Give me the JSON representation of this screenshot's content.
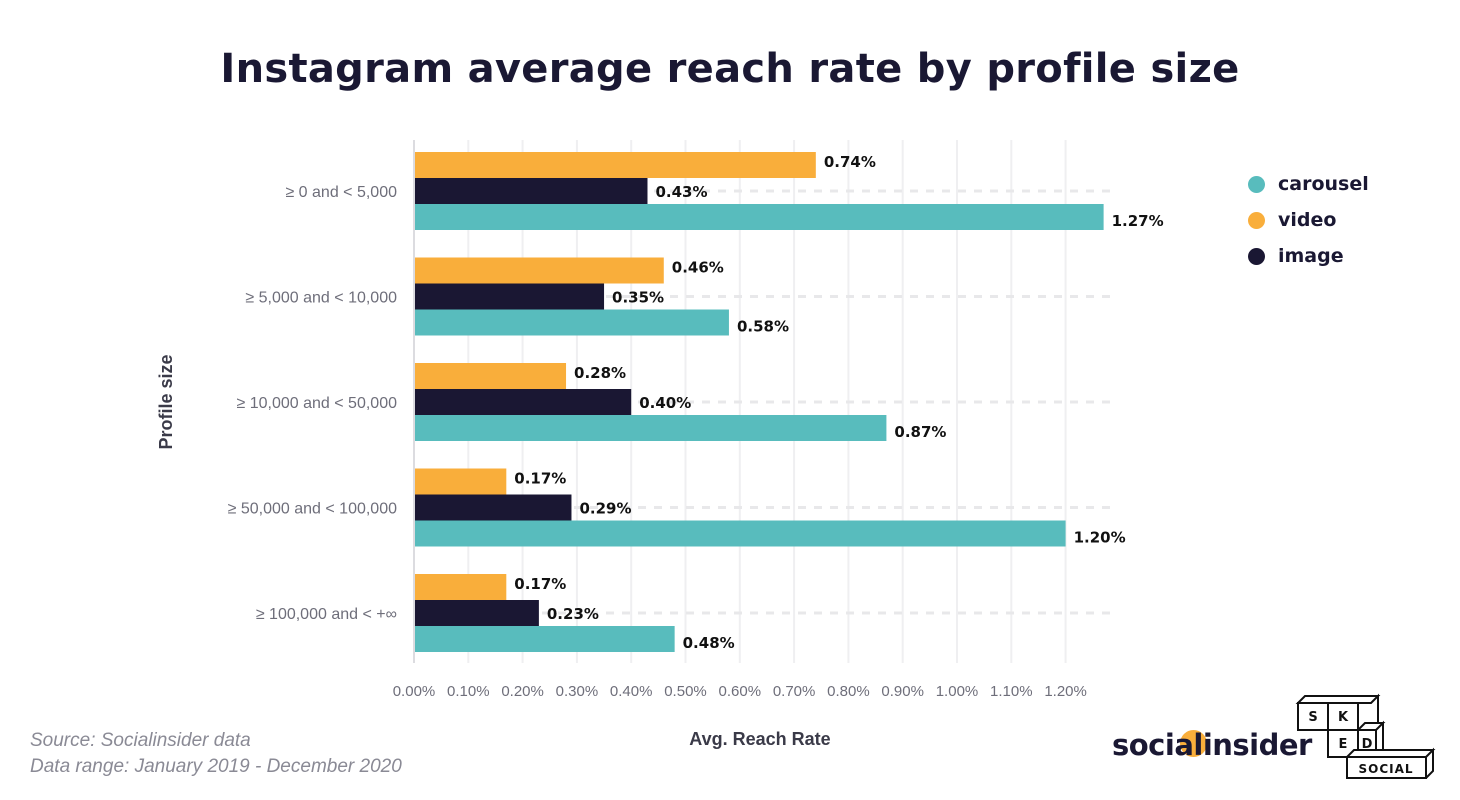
{
  "chart_data": {
    "type": "bar",
    "orientation": "horizontal",
    "title": "Instagram average reach rate by profile size",
    "xlabel": "Avg. Reach Rate",
    "ylabel": "Profile size",
    "categories": [
      "≥ 0 and < 5,000",
      "≥ 5,000 and < 10,000",
      "≥ 10,000 and < 50,000",
      "≥ 50,000 and < 100,000",
      "≥ 100,000 and < +∞"
    ],
    "series": [
      {
        "name": "video",
        "color": "#f9ae3b",
        "values": [
          0.74,
          0.46,
          0.28,
          0.17,
          0.17
        ],
        "labels": [
          "0.74%",
          "0.46%",
          "0.28%",
          "0.17%",
          "0.17%"
        ]
      },
      {
        "name": "image",
        "color": "#1a1733",
        "values": [
          0.43,
          0.35,
          0.4,
          0.29,
          0.23
        ],
        "labels": [
          "0.43%",
          "0.35%",
          "0.40%",
          "0.29%",
          "0.23%"
        ]
      },
      {
        "name": "carousel",
        "color": "#58bcbd",
        "values": [
          1.27,
          0.58,
          0.87,
          1.2,
          0.48
        ],
        "labels": [
          "1.27%",
          "0.58%",
          "0.87%",
          "1.20%",
          "0.48%"
        ]
      }
    ],
    "xlim": [
      0,
      1.28
    ],
    "xticks": [
      "0.00%",
      "0.10%",
      "0.20%",
      "0.30%",
      "0.40%",
      "0.50%",
      "0.60%",
      "0.70%",
      "0.80%",
      "0.90%",
      "1.00%",
      "1.10%",
      "1.20%"
    ],
    "grid": true,
    "legend": {
      "placement": "top-right",
      "order": [
        "carousel",
        "video",
        "image"
      ]
    }
  },
  "footer": {
    "source": "Source: Socialinsider data",
    "range": "Data range: January 2019 - December 2020"
  },
  "logos": {
    "socialinsider": "socialinsider",
    "sked": [
      "S",
      "K",
      "E",
      "D",
      "SOCIAL"
    ]
  }
}
